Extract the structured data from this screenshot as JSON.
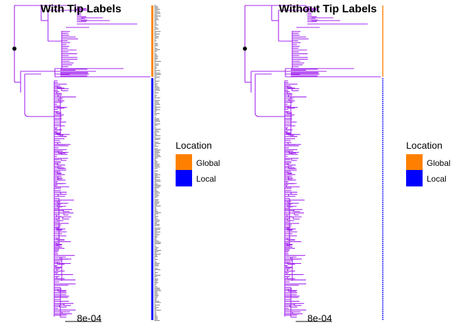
{
  "colors": {
    "branch": "#a020f0",
    "node": "#000000",
    "global": "#ff8000",
    "local": "#0000ff"
  },
  "panels": [
    {
      "title": "With Tip Labels",
      "tip_labels": true,
      "scale_label": "8e-04"
    },
    {
      "title": "Without Tip Labels",
      "tip_labels": false,
      "scale_label": "8e-04"
    }
  ],
  "legend": {
    "title": "Location",
    "items": [
      {
        "label": "Global",
        "color": "#ff8000"
      },
      {
        "label": "Local",
        "color": "#0000ff"
      }
    ]
  }
}
